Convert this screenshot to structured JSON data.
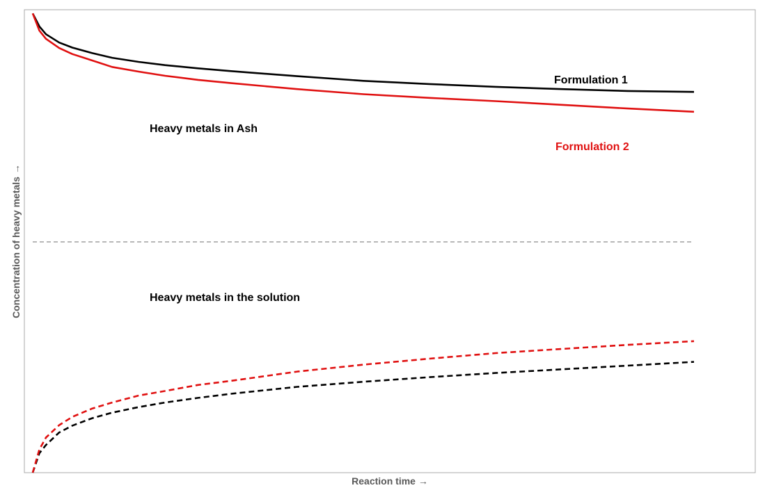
{
  "chart_data": {
    "type": "line",
    "title": "",
    "xlabel": "Reaction time →",
    "ylabel": "Concentration of heavy metals →",
    "xlim": [
      0,
      100
    ],
    "ylim": [
      0,
      100
    ],
    "grid": false,
    "annotations": {
      "ash_region": "Heavy metals in Ash",
      "solution_region": "Heavy metals in the solution",
      "formulation1": "Formulation 1",
      "formulation2": "Formulation 2"
    },
    "divider_y": 50,
    "series": [
      {
        "name": "Formulation 1",
        "group": "ash",
        "color": "#000000",
        "style": "solid",
        "x": [
          0,
          1,
          2,
          4,
          6,
          9,
          12,
          16,
          20,
          25,
          30,
          40,
          50,
          60,
          70,
          80,
          90,
          100
        ],
        "y": [
          99.5,
          96.7,
          95.0,
          93.2,
          92.1,
          90.9,
          89.9,
          89.0,
          88.3,
          87.6,
          87.0,
          85.9,
          84.9,
          84.2,
          83.6,
          83.1,
          82.7,
          82.5
        ]
      },
      {
        "name": "Formulation 2",
        "group": "ash",
        "color": "#e01010",
        "style": "solid",
        "x": [
          0,
          1,
          2,
          4,
          6,
          9,
          12,
          16,
          20,
          25,
          30,
          40,
          50,
          60,
          70,
          80,
          90,
          100
        ],
        "y": [
          99.5,
          95.8,
          94.0,
          92.0,
          90.7,
          89.3,
          87.9,
          86.9,
          86.0,
          85.1,
          84.4,
          83.1,
          82.0,
          81.2,
          80.5,
          79.7,
          78.9,
          78.2
        ]
      },
      {
        "name": "Formulation 1",
        "group": "solution",
        "color": "#000000",
        "style": "dashed",
        "x": [
          0,
          1,
          2,
          4,
          6,
          9,
          12,
          16,
          20,
          25,
          30,
          40,
          50,
          60,
          70,
          80,
          90,
          100
        ],
        "y": [
          0,
          4.2,
          6.0,
          8.7,
          10.2,
          11.8,
          13.0,
          14.2,
          15.2,
          16.2,
          17.1,
          18.6,
          19.7,
          20.7,
          21.6,
          22.4,
          23.2,
          24.0
        ]
      },
      {
        "name": "Formulation 2",
        "group": "solution",
        "color": "#e01010",
        "style": "dashed",
        "x": [
          0,
          1,
          2,
          4,
          6,
          9,
          12,
          16,
          20,
          25,
          30,
          40,
          50,
          60,
          70,
          80,
          90,
          100
        ],
        "y": [
          0,
          5.0,
          7.6,
          10.3,
          12.1,
          13.9,
          15.2,
          16.7,
          17.7,
          19.0,
          19.9,
          21.9,
          23.4,
          24.7,
          25.9,
          26.8,
          27.7,
          28.5
        ]
      }
    ]
  }
}
